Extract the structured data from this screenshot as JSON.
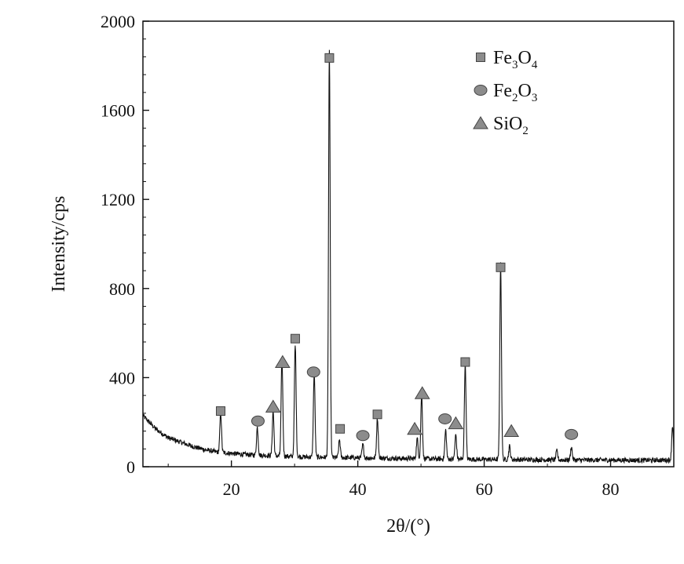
{
  "chart_data": {
    "type": "line",
    "xlabel": "2θ/(°)",
    "ylabel": "Intensity/cps",
    "xlim": [
      6,
      90
    ],
    "ylim": [
      0,
      2000
    ],
    "x_ticks": [
      20,
      40,
      60,
      80
    ],
    "y_ticks": [
      0,
      400,
      800,
      1200,
      1600,
      2000
    ],
    "grid": false,
    "legend_position": "top-right",
    "legend": [
      {
        "marker": "square",
        "base": "Fe",
        "sub1": "3",
        "mid": "O",
        "sub2": "4",
        "color": "#8c8c8c"
      },
      {
        "marker": "circle",
        "base": "Fe",
        "sub1": "2",
        "mid": "O",
        "sub2": "3",
        "color": "#8c8c8c"
      },
      {
        "marker": "triangle",
        "base": "SiO",
        "sub1": "2",
        "mid": "",
        "sub2": "",
        "color": "#8c8c8c"
      }
    ],
    "series_color": "#111111",
    "baseline": [
      [
        6,
        230
      ],
      [
        7,
        200
      ],
      [
        8,
        170
      ],
      [
        9,
        150
      ],
      [
        10,
        130
      ],
      [
        12,
        110
      ],
      [
        14,
        90
      ],
      [
        16,
        75
      ],
      [
        18,
        65
      ],
      [
        20,
        60
      ],
      [
        22,
        55
      ],
      [
        24,
        52
      ],
      [
        26,
        50
      ],
      [
        28,
        48
      ],
      [
        30,
        45
      ],
      [
        35,
        42
      ],
      [
        40,
        40
      ],
      [
        45,
        38
      ],
      [
        50,
        36
      ],
      [
        55,
        34
      ],
      [
        60,
        33
      ],
      [
        65,
        32
      ],
      [
        70,
        31
      ],
      [
        75,
        30
      ],
      [
        80,
        30
      ],
      [
        85,
        29
      ],
      [
        89,
        30
      ]
    ],
    "peaks": [
      {
        "x": 18.3,
        "y": 180
      },
      {
        "x": 24.1,
        "y": 125
      },
      {
        "x": 26.6,
        "y": 200
      },
      {
        "x": 28.0,
        "y": 430
      },
      {
        "x": 30.1,
        "y": 500
      },
      {
        "x": 33.1,
        "y": 380
      },
      {
        "x": 35.5,
        "y": 1830
      },
      {
        "x": 37.1,
        "y": 80
      },
      {
        "x": 40.8,
        "y": 60
      },
      {
        "x": 43.1,
        "y": 180
      },
      {
        "x": 49.4,
        "y": 90
      },
      {
        "x": 50.1,
        "y": 290
      },
      {
        "x": 53.9,
        "y": 130
      },
      {
        "x": 55.5,
        "y": 110
      },
      {
        "x": 57.0,
        "y": 430
      },
      {
        "x": 62.6,
        "y": 875
      },
      {
        "x": 64.0,
        "y": 60
      },
      {
        "x": 71.5,
        "y": 40
      },
      {
        "x": 73.8,
        "y": 60
      },
      {
        "x": 89.8,
        "y": 155
      }
    ],
    "markers": [
      {
        "phase": "Fe3O4",
        "shape": "square",
        "x": 18.3,
        "y": 250
      },
      {
        "phase": "Fe3O4",
        "shape": "square",
        "x": 30.1,
        "y": 575
      },
      {
        "phase": "Fe3O4",
        "shape": "square",
        "x": 35.5,
        "y": 1835
      },
      {
        "phase": "Fe3O4",
        "shape": "square",
        "x": 37.2,
        "y": 170
      },
      {
        "phase": "Fe3O4",
        "shape": "square",
        "x": 43.1,
        "y": 235
      },
      {
        "phase": "Fe3O4",
        "shape": "square",
        "x": 57.0,
        "y": 470
      },
      {
        "phase": "Fe3O4",
        "shape": "square",
        "x": 62.6,
        "y": 895
      },
      {
        "phase": "Fe2O3",
        "shape": "circle",
        "x": 24.2,
        "y": 205
      },
      {
        "phase": "Fe2O3",
        "shape": "circle",
        "x": 33.0,
        "y": 425
      },
      {
        "phase": "Fe2O3",
        "shape": "circle",
        "x": 40.8,
        "y": 140
      },
      {
        "phase": "Fe2O3",
        "shape": "circle",
        "x": 53.8,
        "y": 215
      },
      {
        "phase": "Fe2O3",
        "shape": "circle",
        "x": 73.8,
        "y": 145
      },
      {
        "phase": "SiO2",
        "shape": "triangle",
        "x": 26.6,
        "y": 270
      },
      {
        "phase": "SiO2",
        "shape": "triangle",
        "x": 28.1,
        "y": 470
      },
      {
        "phase": "SiO2",
        "shape": "triangle",
        "x": 49.0,
        "y": 170
      },
      {
        "phase": "SiO2",
        "shape": "triangle",
        "x": 50.2,
        "y": 330
      },
      {
        "phase": "SiO2",
        "shape": "triangle",
        "x": 55.5,
        "y": 195
      },
      {
        "phase": "SiO2",
        "shape": "triangle",
        "x": 64.3,
        "y": 160
      }
    ]
  }
}
